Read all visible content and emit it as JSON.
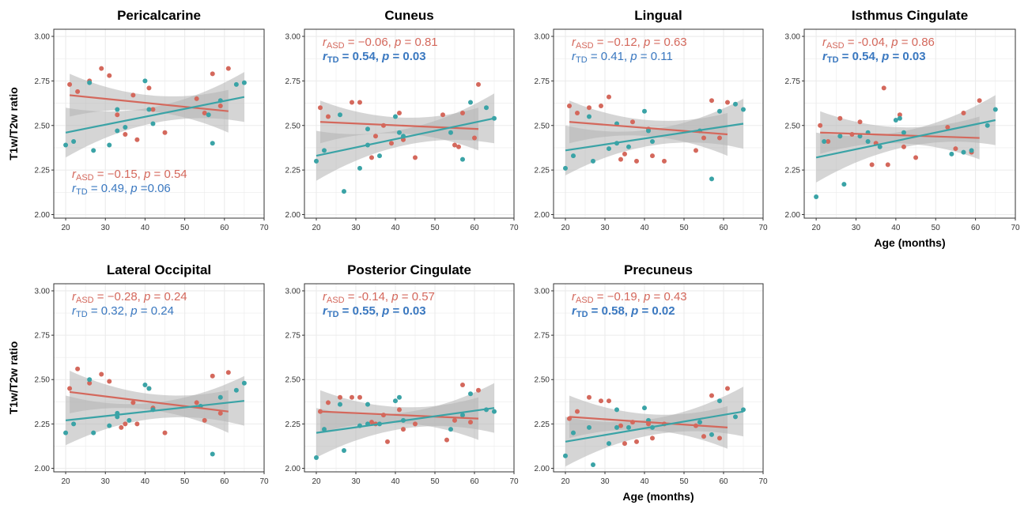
{
  "colors": {
    "asd": "#d4685c",
    "td": "#3aa3a6",
    "td_text": "#3a78c0",
    "band": "#b3b3b3",
    "grid": "#ebebeb"
  },
  "ylabel": "T1w/T2w ratio",
  "xlabel": "Age (months)",
  "stats_labels": {
    "asd_sub": "ASD",
    "td_sub": "TD",
    "r": "r",
    "p": "p"
  },
  "chart_data": [
    {
      "type": "scatter",
      "title": "Pericalcarine",
      "xlim": [
        17,
        70
      ],
      "ylim": [
        1.98,
        3.04
      ],
      "xticks": [
        "20",
        "30",
        "40",
        "50",
        "60",
        "70"
      ],
      "yticks": [
        "2.00",
        "2.25",
        "2.50",
        "2.75",
        "3.00"
      ],
      "stats": {
        "asd": {
          "r": "−0.15",
          "p": "0.54",
          "bold": false
        },
        "td": {
          "r": "0.49",
          "p": "0.06",
          "bold": false,
          "eq": " ="
        }
      },
      "stats_pos": "bottom-left",
      "asd_points": [
        [
          21,
          2.73
        ],
        [
          23,
          2.69
        ],
        [
          26,
          2.75
        ],
        [
          29,
          2.82
        ],
        [
          31,
          2.78
        ],
        [
          33,
          2.56
        ],
        [
          35,
          2.45
        ],
        [
          37,
          2.67
        ],
        [
          38,
          2.42
        ],
        [
          41,
          2.71
        ],
        [
          42,
          2.59
        ],
        [
          45,
          2.46
        ],
        [
          53,
          2.65
        ],
        [
          55,
          2.57
        ],
        [
          57,
          2.79
        ],
        [
          59,
          2.61
        ],
        [
          61,
          2.82
        ]
      ],
      "td_points": [
        [
          20,
          2.39
        ],
        [
          22,
          2.41
        ],
        [
          26,
          2.74
        ],
        [
          27,
          2.36
        ],
        [
          31,
          2.39
        ],
        [
          33,
          2.47
        ],
        [
          33,
          2.59
        ],
        [
          35,
          2.49
        ],
        [
          40,
          2.75
        ],
        [
          41,
          2.59
        ],
        [
          42,
          2.51
        ],
        [
          56,
          2.56
        ],
        [
          57,
          2.4
        ],
        [
          59,
          2.64
        ],
        [
          63,
          2.73
        ],
        [
          65,
          2.74
        ]
      ],
      "asd_line": [
        21,
        2.67,
        61,
        2.58
      ],
      "td_line": [
        20,
        2.46,
        65,
        2.66
      ]
    },
    {
      "type": "scatter",
      "title": "Cuneus",
      "xlim": [
        17,
        70
      ],
      "ylim": [
        1.98,
        3.04
      ],
      "xticks": [
        "20",
        "30",
        "40",
        "50",
        "60",
        "70"
      ],
      "yticks": [
        "2.00",
        "2.25",
        "2.50",
        "2.75",
        "3.00"
      ],
      "stats": {
        "asd": {
          "r": "−0.06",
          "p": "0.81",
          "bold": false
        },
        "td": {
          "r": "0.54",
          "p": "0.03",
          "bold": true
        }
      },
      "stats_pos": "top-left",
      "asd_points": [
        [
          21,
          2.6
        ],
        [
          23,
          2.55
        ],
        [
          29,
          2.63
        ],
        [
          31,
          2.63
        ],
        [
          34,
          2.32
        ],
        [
          35,
          2.44
        ],
        [
          37,
          2.5
        ],
        [
          39,
          2.4
        ],
        [
          41,
          2.57
        ],
        [
          42,
          2.42
        ],
        [
          45,
          2.32
        ],
        [
          52,
          2.56
        ],
        [
          55,
          2.39
        ],
        [
          56,
          2.38
        ],
        [
          57,
          2.57
        ],
        [
          60,
          2.43
        ],
        [
          61,
          2.73
        ]
      ],
      "td_points": [
        [
          20,
          2.3
        ],
        [
          22,
          2.36
        ],
        [
          26,
          2.56
        ],
        [
          27,
          2.13
        ],
        [
          31,
          2.26
        ],
        [
          33,
          2.48
        ],
        [
          33,
          2.39
        ],
        [
          36,
          2.33
        ],
        [
          40,
          2.55
        ],
        [
          41,
          2.46
        ],
        [
          42,
          2.44
        ],
        [
          54,
          2.46
        ],
        [
          57,
          2.31
        ],
        [
          59,
          2.63
        ],
        [
          63,
          2.6
        ],
        [
          65,
          2.54
        ]
      ],
      "asd_line": [
        21,
        2.52,
        61,
        2.48
      ],
      "td_line": [
        20,
        2.33,
        65,
        2.54
      ]
    },
    {
      "type": "scatter",
      "title": "Lingual",
      "xlim": [
        17,
        70
      ],
      "ylim": [
        1.98,
        3.04
      ],
      "xticks": [
        "20",
        "30",
        "40",
        "50",
        "60",
        "70"
      ],
      "yticks": [
        "2.00",
        "2.25",
        "2.50",
        "2.75",
        "3.00"
      ],
      "stats": {
        "asd": {
          "r": "−0.12",
          "p": "0.63",
          "bold": false
        },
        "td": {
          "r": "0.41",
          "p": "0.11",
          "bold": false
        }
      },
      "stats_pos": "top-left",
      "asd_points": [
        [
          21,
          2.61
        ],
        [
          23,
          2.57
        ],
        [
          26,
          2.6
        ],
        [
          29,
          2.61
        ],
        [
          31,
          2.66
        ],
        [
          34,
          2.31
        ],
        [
          35,
          2.34
        ],
        [
          37,
          2.52
        ],
        [
          38,
          2.3
        ],
        [
          41,
          2.48
        ],
        [
          42,
          2.33
        ],
        [
          45,
          2.3
        ],
        [
          53,
          2.36
        ],
        [
          55,
          2.43
        ],
        [
          57,
          2.64
        ],
        [
          59,
          2.43
        ],
        [
          61,
          2.63
        ]
      ],
      "td_points": [
        [
          20,
          2.26
        ],
        [
          22,
          2.33
        ],
        [
          26,
          2.55
        ],
        [
          27,
          2.3
        ],
        [
          31,
          2.37
        ],
        [
          33,
          2.51
        ],
        [
          33,
          2.4
        ],
        [
          36,
          2.38
        ],
        [
          40,
          2.58
        ],
        [
          41,
          2.47
        ],
        [
          42,
          2.41
        ],
        [
          54,
          2.47
        ],
        [
          57,
          2.2
        ],
        [
          59,
          2.58
        ],
        [
          63,
          2.62
        ],
        [
          65,
          2.59
        ]
      ],
      "asd_line": [
        21,
        2.52,
        61,
        2.45
      ],
      "td_line": [
        20,
        2.36,
        65,
        2.51
      ]
    },
    {
      "type": "scatter",
      "title": "Isthmus Cingulate",
      "xlim": [
        17,
        70
      ],
      "ylim": [
        1.98,
        3.04
      ],
      "xticks": [
        "20",
        "30",
        "40",
        "50",
        "60",
        "70"
      ],
      "yticks": [
        "2.00",
        "2.25",
        "2.50",
        "2.75",
        "3.00"
      ],
      "xlabel_shown": true,
      "stats": {
        "asd": {
          "r": "-0.04",
          "p": "0.86",
          "bold": false
        },
        "td": {
          "r": "0.54",
          "p": "0.03",
          "bold": true
        }
      },
      "stats_pos": "top-left",
      "asd_points": [
        [
          21,
          2.5
        ],
        [
          23,
          2.41
        ],
        [
          26,
          2.54
        ],
        [
          29,
          2.45
        ],
        [
          31,
          2.52
        ],
        [
          34,
          2.28
        ],
        [
          35,
          2.4
        ],
        [
          37,
          2.71
        ],
        [
          38,
          2.28
        ],
        [
          41,
          2.56
        ],
        [
          42,
          2.38
        ],
        [
          45,
          2.32
        ],
        [
          53,
          2.49
        ],
        [
          55,
          2.37
        ],
        [
          57,
          2.57
        ],
        [
          59,
          2.35
        ],
        [
          61,
          2.64
        ]
      ],
      "td_points": [
        [
          20,
          2.1
        ],
        [
          22,
          2.41
        ],
        [
          26,
          2.44
        ],
        [
          27,
          2.17
        ],
        [
          31,
          2.44
        ],
        [
          33,
          2.46
        ],
        [
          33,
          2.41
        ],
        [
          36,
          2.38
        ],
        [
          40,
          2.53
        ],
        [
          41,
          2.54
        ],
        [
          42,
          2.46
        ],
        [
          54,
          2.34
        ],
        [
          57,
          2.35
        ],
        [
          59,
          2.36
        ],
        [
          63,
          2.5
        ],
        [
          65,
          2.59
        ]
      ],
      "asd_line": [
        21,
        2.46,
        61,
        2.43
      ],
      "td_line": [
        20,
        2.32,
        65,
        2.53
      ]
    },
    {
      "type": "scatter",
      "title": "Lateral Occipital",
      "xlim": [
        17,
        70
      ],
      "ylim": [
        1.98,
        3.04
      ],
      "xticks": [
        "20",
        "30",
        "40",
        "50",
        "60",
        "70"
      ],
      "yticks": [
        "2.00",
        "2.25",
        "2.50",
        "2.75",
        "3.00"
      ],
      "stats": {
        "asd": {
          "r": "−0.28",
          "p": "0.24",
          "bold": false
        },
        "td": {
          "r": "0.32",
          "p": "0.24",
          "bold": false
        }
      },
      "stats_pos": "top-left",
      "asd_points": [
        [
          21,
          2.45
        ],
        [
          23,
          2.56
        ],
        [
          26,
          2.48
        ],
        [
          29,
          2.53
        ],
        [
          31,
          2.49
        ],
        [
          34,
          2.23
        ],
        [
          35,
          2.25
        ],
        [
          37,
          2.37
        ],
        [
          38,
          2.25
        ],
        [
          41,
          2.45
        ],
        [
          42,
          2.34
        ],
        [
          45,
          2.2
        ],
        [
          53,
          2.37
        ],
        [
          55,
          2.27
        ],
        [
          57,
          2.52
        ],
        [
          59,
          2.31
        ],
        [
          61,
          2.54
        ]
      ],
      "td_points": [
        [
          20,
          2.2
        ],
        [
          22,
          2.25
        ],
        [
          26,
          2.5
        ],
        [
          27,
          2.2
        ],
        [
          31,
          2.24
        ],
        [
          33,
          2.29
        ],
        [
          33,
          2.31
        ],
        [
          36,
          2.27
        ],
        [
          40,
          2.47
        ],
        [
          41,
          2.45
        ],
        [
          42,
          2.33
        ],
        [
          54,
          2.35
        ],
        [
          57,
          2.08
        ],
        [
          59,
          2.4
        ],
        [
          63,
          2.44
        ],
        [
          65,
          2.48
        ]
      ],
      "asd_line": [
        21,
        2.43,
        61,
        2.32
      ],
      "td_line": [
        20,
        2.27,
        65,
        2.38
      ]
    },
    {
      "type": "scatter",
      "title": "Posterior Cingulate",
      "xlim": [
        17,
        70
      ],
      "ylim": [
        1.98,
        3.04
      ],
      "xticks": [
        "20",
        "30",
        "40",
        "50",
        "60",
        "70"
      ],
      "yticks": [
        "2.00",
        "2.25",
        "2.50",
        "2.75",
        "3.00"
      ],
      "stats": {
        "asd": {
          "r": "-0.14",
          "p": "0.57",
          "bold": false
        },
        "td": {
          "r": "0.55",
          "p": "0.03",
          "bold": true
        }
      },
      "stats_pos": "top-left",
      "asd_points": [
        [
          21,
          2.32
        ],
        [
          23,
          2.37
        ],
        [
          26,
          2.4
        ],
        [
          29,
          2.4
        ],
        [
          31,
          2.4
        ],
        [
          34,
          2.26
        ],
        [
          35,
          2.25
        ],
        [
          37,
          2.3
        ],
        [
          38,
          2.15
        ],
        [
          41,
          2.33
        ],
        [
          42,
          2.22
        ],
        [
          45,
          2.25
        ],
        [
          53,
          2.16
        ],
        [
          55,
          2.27
        ],
        [
          57,
          2.47
        ],
        [
          59,
          2.26
        ],
        [
          61,
          2.44
        ]
      ],
      "td_points": [
        [
          20,
          2.06
        ],
        [
          22,
          2.22
        ],
        [
          26,
          2.36
        ],
        [
          27,
          2.1
        ],
        [
          31,
          2.24
        ],
        [
          33,
          2.36
        ],
        [
          33,
          2.25
        ],
        [
          36,
          2.25
        ],
        [
          40,
          2.38
        ],
        [
          41,
          2.4
        ],
        [
          42,
          2.27
        ],
        [
          54,
          2.22
        ],
        [
          57,
          2.3
        ],
        [
          59,
          2.42
        ],
        [
          63,
          2.33
        ],
        [
          65,
          2.32
        ]
      ],
      "asd_line": [
        21,
        2.32,
        61,
        2.28
      ],
      "td_line": [
        20,
        2.2,
        65,
        2.34
      ]
    },
    {
      "type": "scatter",
      "title": "Precuneus",
      "xlim": [
        17,
        70
      ],
      "ylim": [
        1.98,
        3.04
      ],
      "xticks": [
        "20",
        "30",
        "40",
        "50",
        "60",
        "70"
      ],
      "yticks": [
        "2.00",
        "2.25",
        "2.50",
        "2.75",
        "3.00"
      ],
      "xlabel_shown": true,
      "stats": {
        "asd": {
          "r": "−0.19",
          "p": "0.43",
          "bold": false
        },
        "td": {
          "r": "0.58",
          "p": "0.02",
          "bold": true
        }
      },
      "stats_pos": "top-left",
      "asd_points": [
        [
          21,
          2.28
        ],
        [
          23,
          2.32
        ],
        [
          26,
          2.4
        ],
        [
          29,
          2.38
        ],
        [
          31,
          2.38
        ],
        [
          34,
          2.24
        ],
        [
          35,
          2.14
        ],
        [
          37,
          2.26
        ],
        [
          38,
          2.15
        ],
        [
          41,
          2.25
        ],
        [
          42,
          2.17
        ],
        [
          45,
          2.25
        ],
        [
          53,
          2.24
        ],
        [
          55,
          2.18
        ],
        [
          57,
          2.41
        ],
        [
          59,
          2.17
        ],
        [
          61,
          2.45
        ]
      ],
      "td_points": [
        [
          20,
          2.07
        ],
        [
          22,
          2.2
        ],
        [
          26,
          2.23
        ],
        [
          27,
          2.02
        ],
        [
          31,
          2.14
        ],
        [
          33,
          2.33
        ],
        [
          33,
          2.23
        ],
        [
          36,
          2.23
        ],
        [
          40,
          2.34
        ],
        [
          41,
          2.27
        ],
        [
          42,
          2.23
        ],
        [
          54,
          2.26
        ],
        [
          57,
          2.19
        ],
        [
          59,
          2.38
        ],
        [
          63,
          2.29
        ],
        [
          65,
          2.33
        ]
      ],
      "asd_line": [
        21,
        2.29,
        61,
        2.23
      ],
      "td_line": [
        20,
        2.15,
        65,
        2.32
      ]
    }
  ]
}
